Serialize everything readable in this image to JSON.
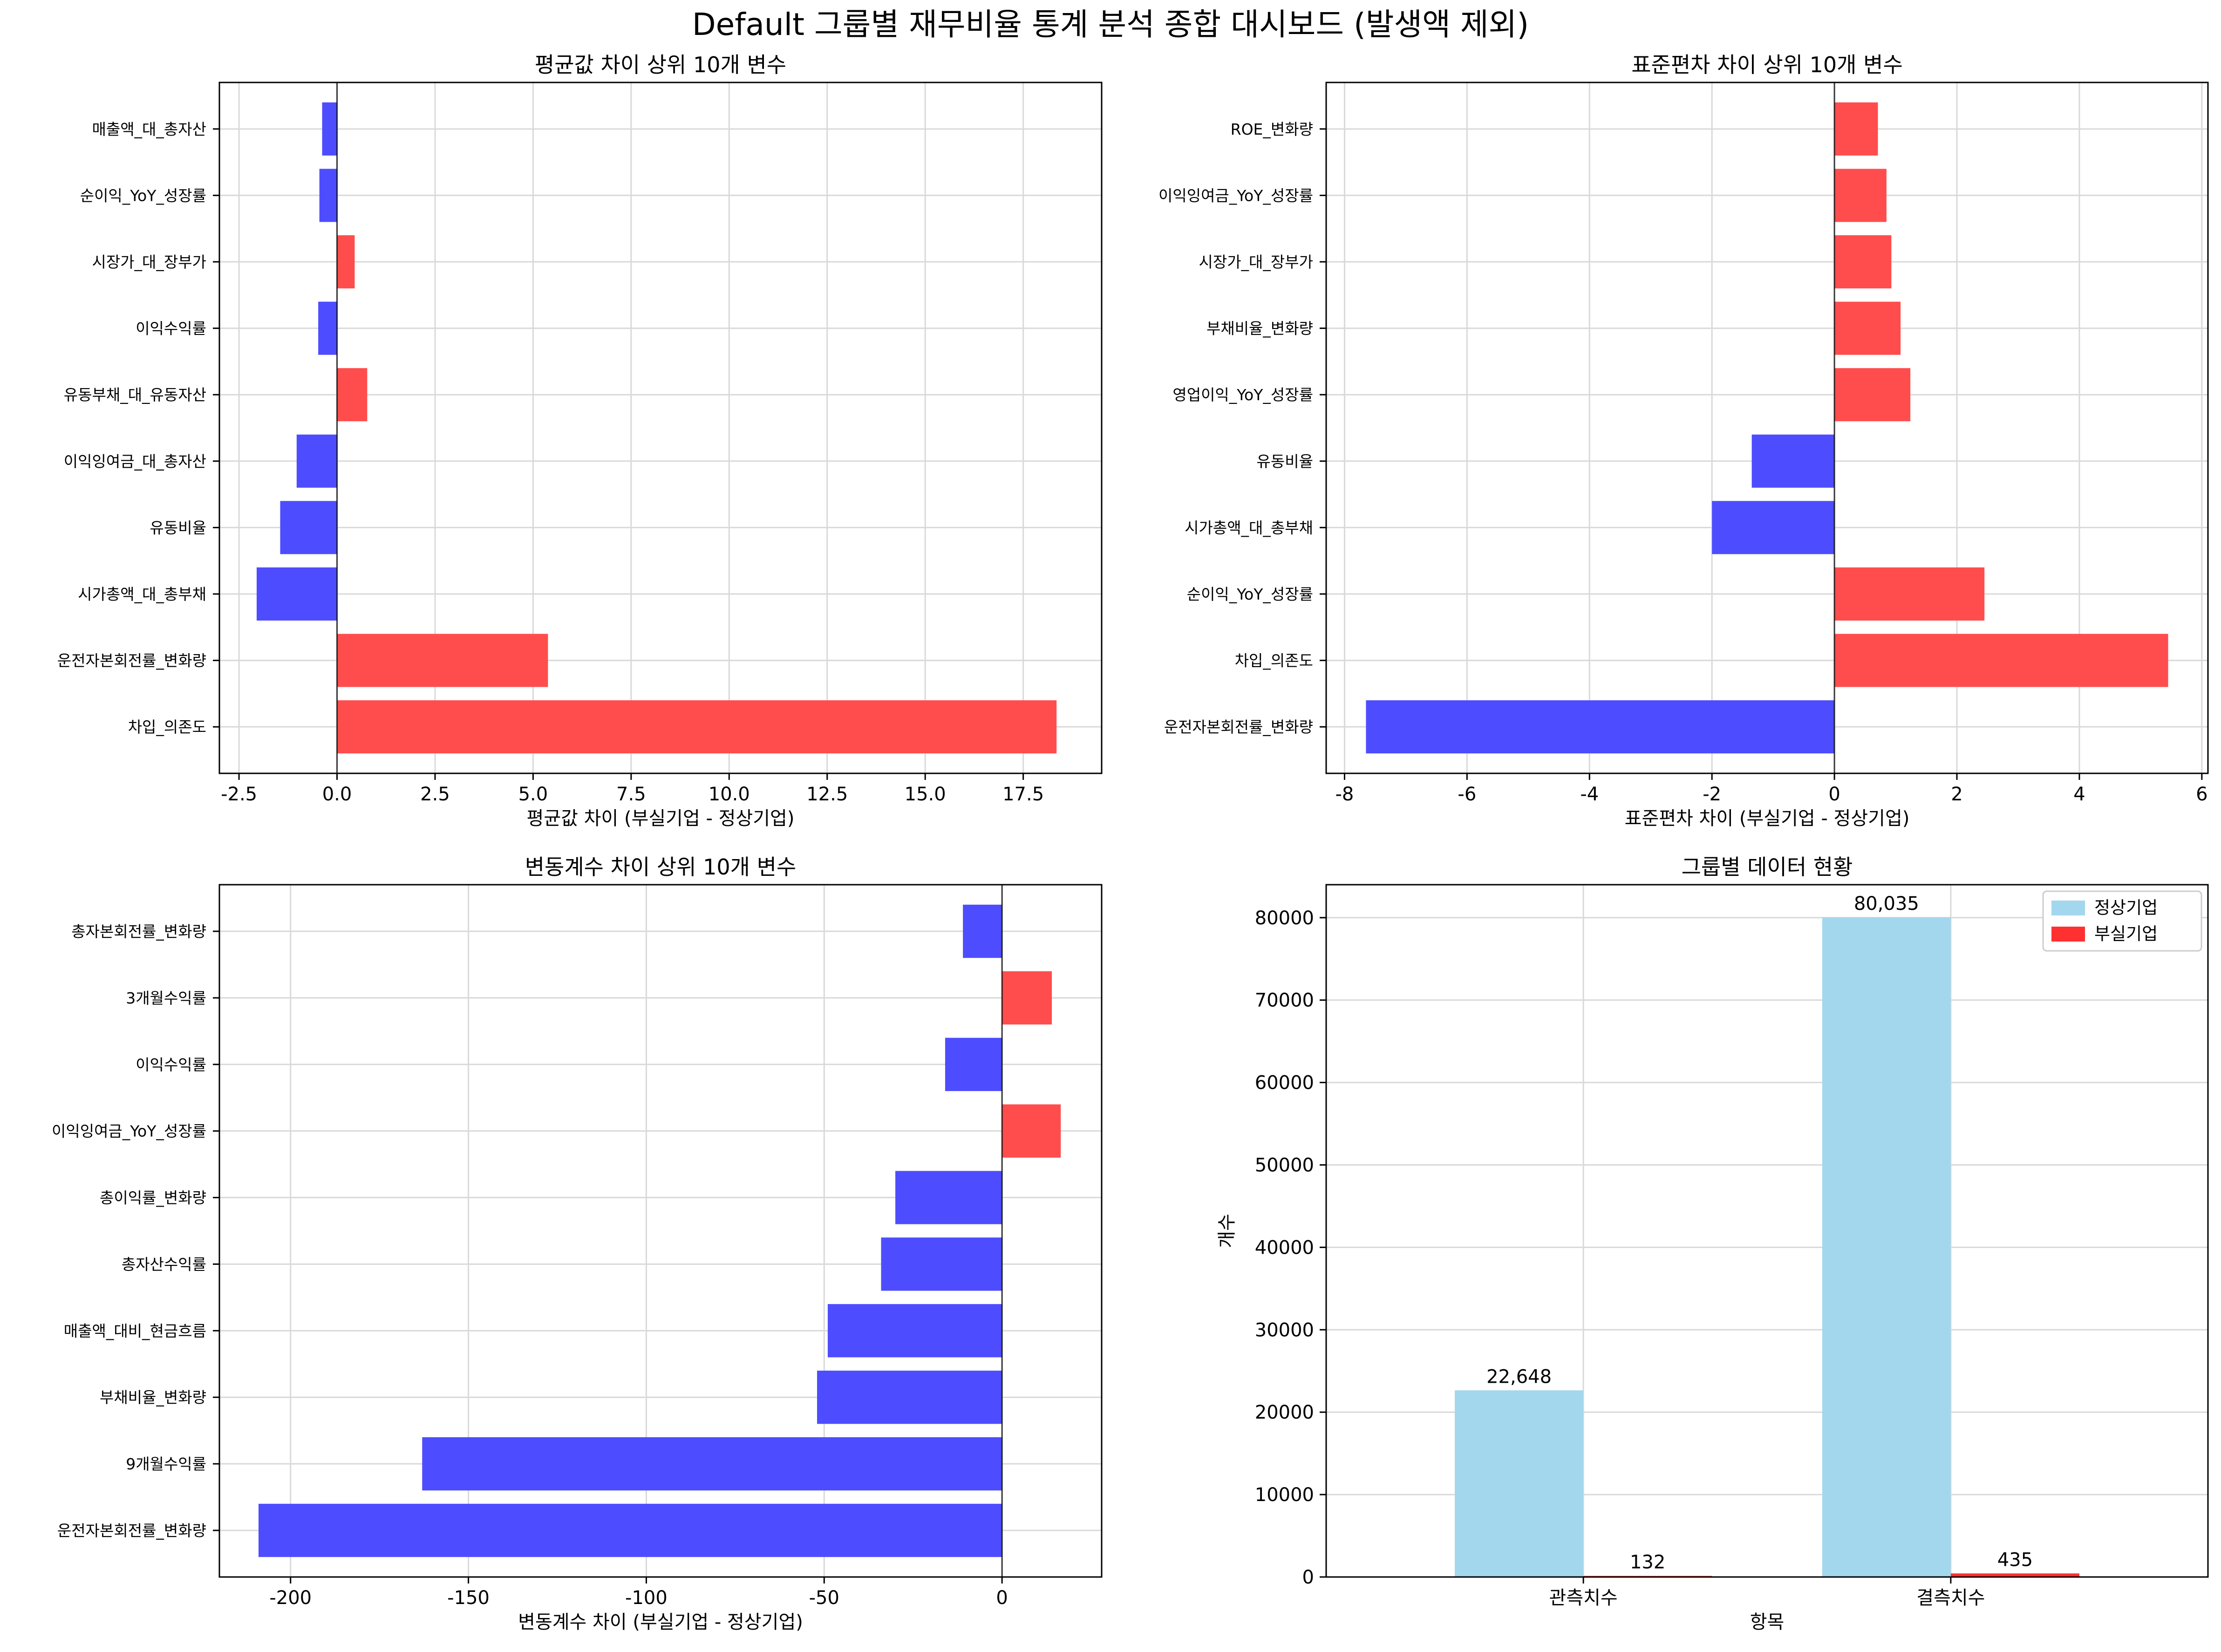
{
  "suptitle": "Default 그룹별 재무비율 통계 분석 종합 대시보드 (발생액 제외)",
  "colors": {
    "positive": "#ff4d4d",
    "negative": "#4d4dff",
    "normal": "#a3d7ee",
    "default": "#ff3030"
  },
  "chart_data": [
    {
      "type": "bar",
      "orientation": "horizontal",
      "title": "평균값 차이 상위 10개 변수",
      "xlabel": "평균값 차이 (부실기업 - 정상기업)",
      "ylabel": "",
      "xlim": [
        -3.0,
        19.5
      ],
      "xticks": [
        -2.5,
        0.0,
        2.5,
        5.0,
        7.5,
        10.0,
        12.5,
        15.0,
        17.5
      ],
      "xtick_labels": [
        "-2.5",
        "0.0",
        "2.5",
        "5.0",
        "7.5",
        "10.0",
        "12.5",
        "15.0",
        "17.5"
      ],
      "grid": true,
      "categories": [
        "매출액_대_총자산",
        "순이익_YoY_성장률",
        "시장가_대_장부가",
        "이익수익률",
        "유동부채_대_유동자산",
        "이익잉여금_대_총자산",
        "유동비율",
        "시가총액_대_총부채",
        "운전자본회전률_변화량",
        "차입_의존도"
      ],
      "values": [
        -0.38,
        -0.45,
        0.45,
        -0.48,
        0.77,
        -1.03,
        -1.45,
        -2.05,
        5.38,
        18.35
      ]
    },
    {
      "type": "bar",
      "orientation": "horizontal",
      "title": "표준편차 차이 상위 10개 변수",
      "xlabel": "표준편차 차이 (부실기업 - 정상기업)",
      "ylabel": "",
      "xlim": [
        -8.3,
        6.1
      ],
      "xticks": [
        -8,
        -6,
        -4,
        -2,
        0,
        2,
        4,
        6
      ],
      "xtick_labels": [
        "-8",
        "-6",
        "-4",
        "-2",
        "0",
        "2",
        "4",
        "6"
      ],
      "grid": true,
      "categories": [
        "ROE_변화량",
        "이익잉여금_YoY_성장률",
        "시장가_대_장부가",
        "부채비율_변화량",
        "영업이익_YoY_성장률",
        "유동비율",
        "시가총액_대_총부채",
        "순이익_YoY_성장률",
        "차입_의존도",
        "운전자본회전률_변화량"
      ],
      "values": [
        0.71,
        0.85,
        0.93,
        1.08,
        1.24,
        -1.35,
        -2.0,
        2.45,
        5.45,
        -7.65
      ]
    },
    {
      "type": "bar",
      "orientation": "horizontal",
      "title": "변동계수 차이 상위 10개 변수",
      "xlabel": "변동계수 차이 (부실기업 - 정상기업)",
      "ylabel": "",
      "xlim": [
        -220,
        28
      ],
      "xticks": [
        -200,
        -150,
        -100,
        -50,
        0
      ],
      "xtick_labels": [
        "-200",
        "-150",
        "-100",
        "-50",
        "0"
      ],
      "grid": true,
      "categories": [
        "총자본회전률_변화량",
        "3개월수익률",
        "이익수익률",
        "이익잉여금_YoY_성장률",
        "총이익률_변화량",
        "총자산수익률",
        "매출액_대비_현금흐름",
        "부채비율_변화량",
        "9개월수익률",
        "운전자본회전률_변화량"
      ],
      "values": [
        -11,
        14,
        -16,
        16.5,
        -30,
        -34,
        -49,
        -52,
        -163,
        -209
      ]
    },
    {
      "type": "bar",
      "orientation": "vertical",
      "title": "그룹별 데이터 현황",
      "xlabel": "항목",
      "ylabel": "개수",
      "ylim": [
        0,
        84000
      ],
      "yticks": [
        0,
        10000,
        20000,
        30000,
        40000,
        50000,
        60000,
        70000,
        80000
      ],
      "ytick_labels": [
        "0",
        "10000",
        "20000",
        "30000",
        "40000",
        "50000",
        "60000",
        "70000",
        "80000"
      ],
      "grid": true,
      "legend_position": "top-right",
      "categories": [
        "관측치수",
        "결측치수"
      ],
      "series": [
        {
          "name": "정상기업",
          "values": [
            22648,
            80035
          ],
          "labels": [
            "22,648",
            "80,035"
          ]
        },
        {
          "name": "부실기업",
          "values": [
            132,
            435
          ],
          "labels": [
            "132",
            "435"
          ]
        }
      ]
    }
  ]
}
